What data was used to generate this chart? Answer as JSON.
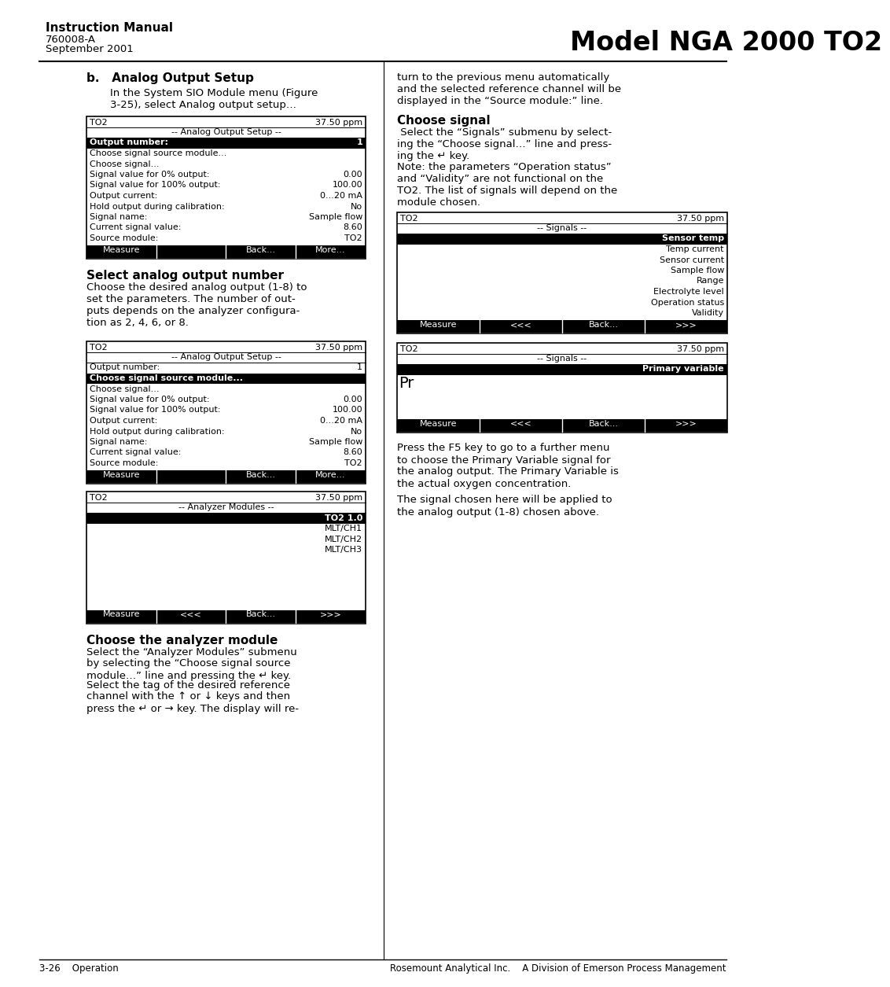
{
  "page_bg": "#ffffff",
  "header": {
    "title_bold": "Instruction Manual",
    "line2": "760008-A",
    "line3": "September 2001",
    "model": "Model NGA 2000 TO2"
  },
  "footer": {
    "left": "3-26    Operation",
    "right": "Rosemount Analytical Inc.    A Division of Emerson Process Management"
  },
  "left_col": {
    "section_b_title": "b.   Analog Output Setup",
    "section_b_intro": "In the System SIO Module menu (Figure\n3-25), select Analog output setup…",
    "screen1": {
      "top_left": "TO2",
      "top_right": "37.50 ppm",
      "title": "-- Analog Output Setup --",
      "rows": [
        {
          "label": "Output number:",
          "value": "1",
          "highlight": true
        },
        {
          "label": "Choose signal source module...",
          "value": "",
          "highlight": false
        },
        {
          "label": "Choose signal...",
          "value": "",
          "highlight": false
        },
        {
          "label": "Signal value for 0% output:",
          "value": "0.00",
          "highlight": false
        },
        {
          "label": "Signal value for 100% output:",
          "value": "100.00",
          "highlight": false
        },
        {
          "label": "Output current:",
          "value": "0...20 mA",
          "highlight": false
        },
        {
          "label": "Hold output during calibration:",
          "value": "No",
          "highlight": false
        },
        {
          "label": "Signal name:",
          "value": "Sample flow",
          "highlight": false
        },
        {
          "label": "Current signal value:",
          "value": "8.60",
          "highlight": false
        },
        {
          "label": "Source module:",
          "value": "TO2",
          "highlight": false
        }
      ],
      "buttons": [
        "Measure",
        "",
        "Back...",
        "More..."
      ]
    },
    "select_number_title": "Select analog output number",
    "select_number_text": "Choose the desired analog output (1-8) to\nset the parameters. The number of out-\nputs depends on the analyzer configura-\ntion as 2, 4, 6, or 8.",
    "screen2": {
      "top_left": "TO2",
      "top_right": "37.50 ppm",
      "title": "-- Analog Output Setup --",
      "rows": [
        {
          "label": "Output number:",
          "value": "1",
          "highlight": false
        },
        {
          "label": "Choose signal source module...",
          "value": "",
          "highlight": true
        },
        {
          "label": "Choose signal...",
          "value": "",
          "highlight": false
        },
        {
          "label": "Signal value for 0% output:",
          "value": "0.00",
          "highlight": false
        },
        {
          "label": "Signal value for 100% output:",
          "value": "100.00",
          "highlight": false
        },
        {
          "label": "Output current:",
          "value": "0...20 mA",
          "highlight": false
        },
        {
          "label": "Hold output during calibration:",
          "value": "No",
          "highlight": false
        },
        {
          "label": "Signal name:",
          "value": "Sample flow",
          "highlight": false
        },
        {
          "label": "Current signal value:",
          "value": "8.60",
          "highlight": false
        },
        {
          "label": "Source module:",
          "value": "TO2",
          "highlight": false
        }
      ],
      "buttons": [
        "Measure",
        "",
        "Back...",
        "More..."
      ]
    },
    "screen3": {
      "top_left": "TO2",
      "top_right": "37.50 ppm",
      "title": "-- Analyzer Modules --",
      "rows": [
        {
          "value": "TO2 1.0",
          "highlight": true
        },
        {
          "value": "MLT/CH1",
          "highlight": false
        },
        {
          "value": "MLT/CH2",
          "highlight": false
        },
        {
          "value": "MLT/CH3",
          "highlight": false
        }
      ],
      "num_empty_rows": 5,
      "buttons": [
        "Measure",
        "<<<",
        "Back...",
        ">>>"
      ]
    },
    "choose_analyzer_title": "Choose the analyzer module",
    "choose_analyzer_text1": "Select the “Analyzer Modules” submenu\nby selecting the “Choose signal source\nmodule…” line and pressing the ↵ key.",
    "choose_analyzer_text2": "Select the tag of the desired reference\nchannel with the ↑ or ↓ keys and then\npress the ↵ or → key. The display will re-"
  },
  "right_col": {
    "intro_text": "turn to the previous menu automatically\nand the selected reference channel will be\ndisplayed in the “Source module:” line.",
    "choose_signal_title": "Choose signal",
    "choose_signal_text1": " Select the “Signals” submenu by select-\ning the “Choose signal…” line and press-\ning the ↵ key.",
    "choose_signal_text2": "Note: the parameters “Operation status”\nand “Validity” are not functional on the\nTO2. The list of signals will depend on the\nmodule chosen.",
    "screen4": {
      "top_left": "TO2",
      "top_right": "37.50 ppm",
      "title": "-- Signals --",
      "rows": [
        "Sensor temp",
        "Temp current",
        "Sensor current",
        "Sample flow",
        "Range",
        "Electrolyte level",
        "Operation status",
        "Validity"
      ],
      "highlight_idx": 0,
      "buttons": [
        "Measure",
        "<<<",
        "Back...",
        ">>>"
      ]
    },
    "screen5": {
      "top_left": "TO2",
      "top_right": "37.50 ppm",
      "title": "-- Signals --",
      "rows": [
        "Primary variable"
      ],
      "highlight_idx": 0,
      "num_empty_rows": 4,
      "prefix_text": "Pr",
      "buttons": [
        "Measure",
        "<<<",
        "Back...",
        ">>>"
      ]
    },
    "final_text1": "Press the F5 key to go to a further menu\nto choose the Primary Variable signal for\nthe analog output. The Primary Variable is\nthe actual oxygen concentration.",
    "final_text2": "The signal chosen here will be applied to\nthe analog output (1-8) chosen above."
  }
}
